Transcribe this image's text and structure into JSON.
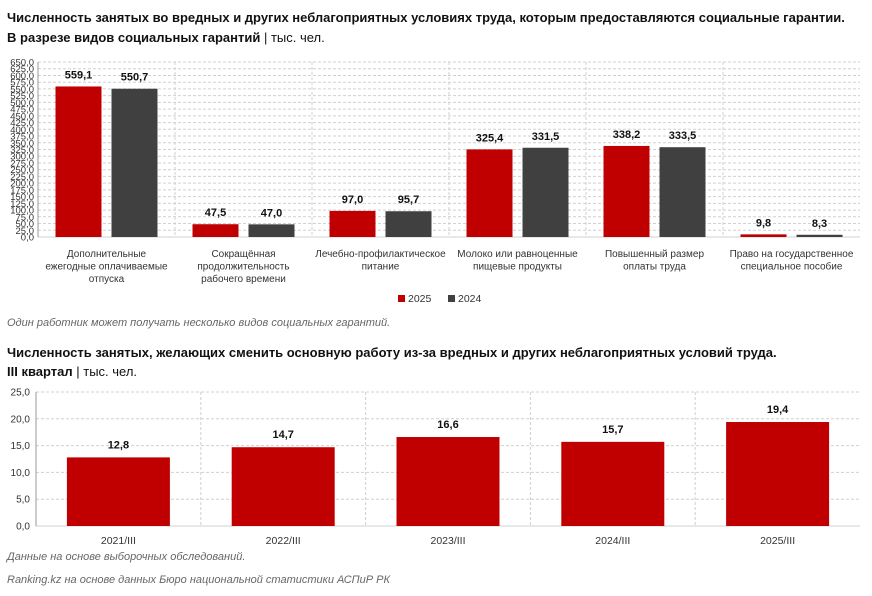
{
  "chart1": {
    "title": "Численность занятых во вредных и других неблагоприятных условиях труда, которым предоставляются социальные гарантии.",
    "subtitle_bold": "В разрезе видов социальных гарантий",
    "subtitle_sep": " | ",
    "subtitle_unit": "тыс. чел.",
    "note": "Один работник может получать несколько видов социальных гарантий."
  },
  "chart2": {
    "title": "Численность занятых, желающих сменить основную работу из-за вредных и других неблагоприятных условий труда.",
    "subtitle_bold": "III квартал",
    "subtitle_sep": " | ",
    "subtitle_unit": "тыс. чел.",
    "note": "Данные на основе выборочных обследований."
  },
  "source": "Ranking.kz на основе данных Бюро национальной статистики АСПиР РК",
  "colors": {
    "s2025": "#c00000",
    "s2024": "#404040",
    "grid": "#d0d0d0"
  },
  "chart_data": [
    {
      "type": "bar",
      "categories": [
        [
          "Дополнительные",
          "ежегодные оплачиваемые",
          "отпуска"
        ],
        [
          "Сокращённая",
          "продолжительность",
          "рабочего времени"
        ],
        [
          "Лечебно-профилактическое",
          "питание"
        ],
        [
          "Молоко или равноценные",
          "пищевые продукты"
        ],
        [
          "Повышенный размер",
          "оплаты труда"
        ],
        [
          "Право на государственное",
          "специальное пособие"
        ]
      ],
      "series": [
        {
          "name": "2025",
          "values": [
            559.1,
            47.5,
            97.0,
            325.4,
            338.2,
            9.8
          ],
          "labels": [
            "559,1",
            "47,5",
            "97,0",
            "325,4",
            "338,2",
            "9,8"
          ]
        },
        {
          "name": "2024",
          "values": [
            550.7,
            47.0,
            95.7,
            331.5,
            333.5,
            8.3
          ],
          "labels": [
            "550,7",
            "47,0",
            "95,7",
            "331,5",
            "333,5",
            "8,3"
          ]
        }
      ],
      "ylim": [
        0,
        650
      ],
      "yticks": [
        "0,0",
        "25,0",
        "50,0",
        "75,0",
        "100,0",
        "125,0",
        "150,0",
        "175,0",
        "200,0",
        "225,0",
        "250,0",
        "275,0",
        "300,0",
        "325,0",
        "350,0",
        "375,0",
        "400,0",
        "425,0",
        "450,0",
        "475,0",
        "500,0",
        "525,0",
        "550,0",
        "575,0",
        "600,0",
        "625,0",
        "650,0"
      ],
      "grid": true,
      "legend": "bottom-center"
    },
    {
      "type": "bar",
      "categories": [
        "2021/III",
        "2022/III",
        "2023/III",
        "2024/III",
        "2025/III"
      ],
      "values": [
        12.8,
        14.7,
        16.6,
        15.7,
        19.4
      ],
      "labels": [
        "12,8",
        "14,7",
        "16,6",
        "15,7",
        "19,4"
      ],
      "ylim": [
        0,
        25
      ],
      "yticks": [
        "0,0",
        "5,0",
        "10,0",
        "15,0",
        "20,0",
        "25,0"
      ],
      "grid": true
    }
  ]
}
